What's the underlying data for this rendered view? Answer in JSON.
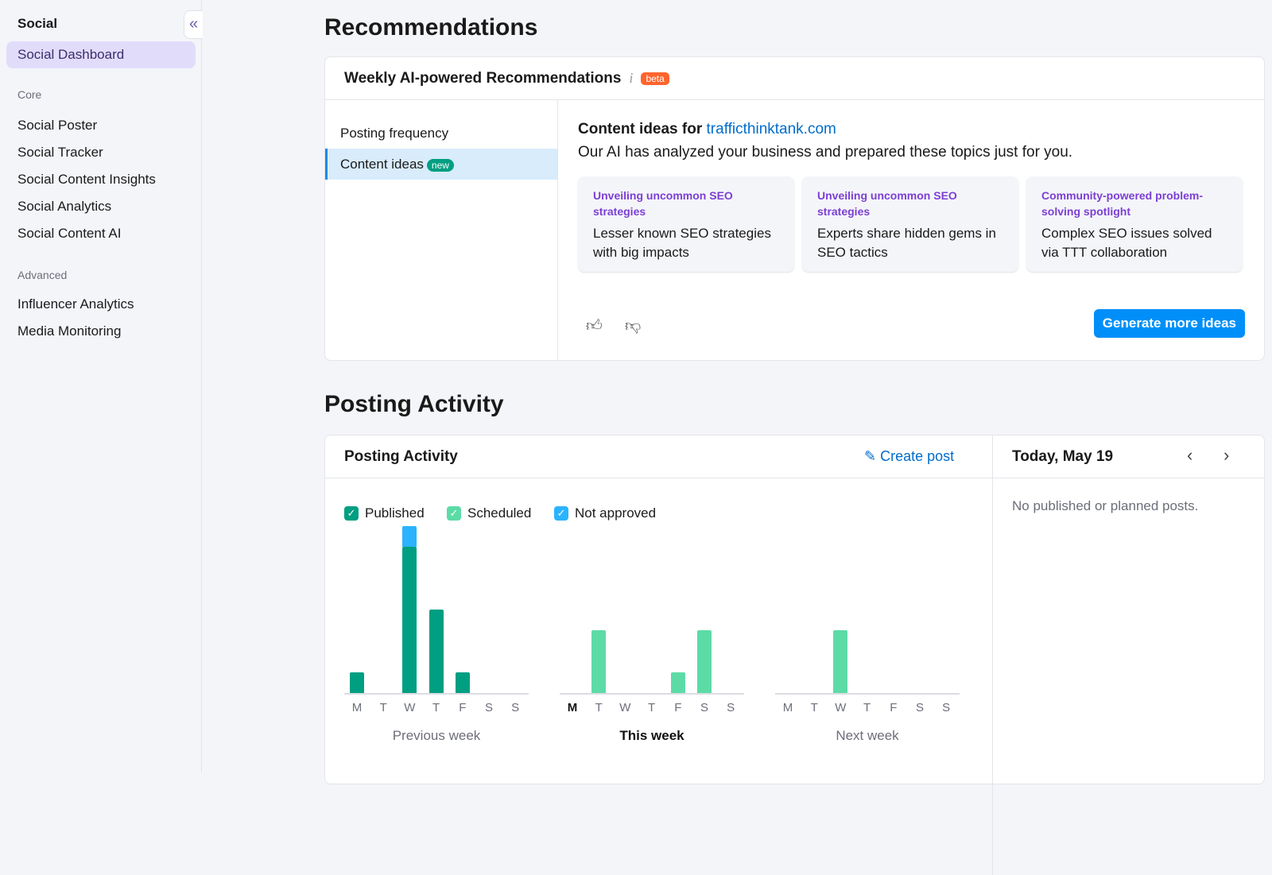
{
  "sidebar": {
    "title": "Social",
    "collapse_icon": "double-chevron-left-icon",
    "active": "Social Dashboard",
    "sections": [
      {
        "label": "Core",
        "items": [
          "Social Poster",
          "Social Tracker",
          "Social Content Insights",
          "Social Analytics",
          "Social Content AI"
        ]
      },
      {
        "label": "Advanced",
        "items": [
          "Influencer Analytics",
          "Media Monitoring"
        ]
      }
    ]
  },
  "recommendations": {
    "heading": "Recommendations",
    "card_title": "Weekly AI-powered Recommendations",
    "info": "i",
    "badge": "beta",
    "tabs": [
      {
        "label": "Posting frequency"
      },
      {
        "label": "Content ideas",
        "badge": "new",
        "active": true
      }
    ],
    "ideas_title": "Content ideas for",
    "domain": "trafficthinktank.com",
    "ideas_subtitle": "Our AI has analyzed your business and prepared these topics just for you.",
    "ideas": [
      {
        "topic": "Unveiling uncommon SEO strategies",
        "text": "Lesser known SEO strategies with big impacts"
      },
      {
        "topic": "Unveiling uncommon SEO strategies",
        "text": "Experts share hidden gems in SEO tactics"
      },
      {
        "topic": "Community-powered problem-solving spotlight",
        "text": "Complex SEO issues solved via TTT collaboration"
      }
    ],
    "generate_button": "Generate more ideas"
  },
  "posting": {
    "heading": "Posting Activity",
    "card_title": "Posting Activity",
    "create_post": "Create post",
    "legend": [
      {
        "label": "Published",
        "color": "#009f81"
      },
      {
        "label": "Scheduled",
        "color": "#5ddba7"
      },
      {
        "label": "Not approved",
        "color": "#2bb3ff"
      }
    ],
    "today": "Today, May 19",
    "empty": "No published or planned posts."
  },
  "chart_data": {
    "type": "bar",
    "stacked": true,
    "days": [
      "M",
      "T",
      "W",
      "T",
      "F",
      "S",
      "S"
    ],
    "weeks": [
      {
        "label": "Previous week",
        "published": [
          1,
          0,
          7,
          4,
          1,
          0,
          0
        ],
        "scheduled": [
          0,
          0,
          0,
          0,
          0,
          0,
          0
        ],
        "not_approved": [
          0,
          0,
          1,
          0,
          0,
          0,
          0
        ]
      },
      {
        "label": "This week",
        "current": true,
        "current_day": "M",
        "published": [
          0,
          0,
          0,
          0,
          0,
          0,
          0
        ],
        "scheduled": [
          0,
          3,
          0,
          0,
          1,
          3,
          0
        ],
        "not_approved": [
          0,
          0,
          0,
          0,
          0,
          0,
          0
        ]
      },
      {
        "label": "Next week",
        "published": [
          0,
          0,
          0,
          0,
          0,
          0,
          0
        ],
        "scheduled": [
          0,
          0,
          3,
          0,
          0,
          0,
          0
        ],
        "not_approved": [
          0,
          0,
          0,
          0,
          0,
          0,
          0
        ]
      }
    ]
  }
}
